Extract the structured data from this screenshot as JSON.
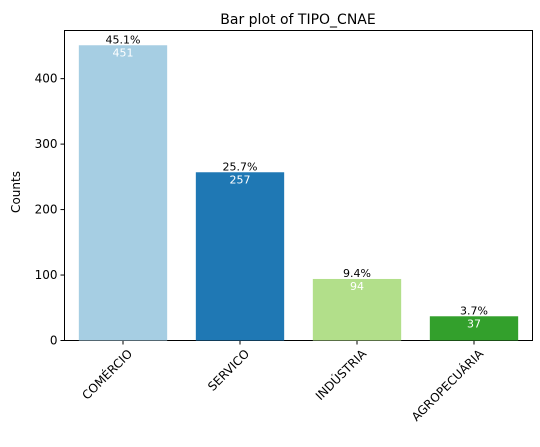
{
  "chart_data": {
    "type": "bar",
    "title": "Bar plot of TIPO_CNAE",
    "xlabel": "",
    "ylabel": "Counts",
    "categories": [
      "COMÉRCIO",
      "SERVICO",
      "INDÚSTRIA",
      "AGROPECUÁRIA"
    ],
    "values": [
      451,
      257,
      94,
      37
    ],
    "percent_labels": [
      "45.1%",
      "25.7%",
      "9.4%",
      "3.7%"
    ],
    "value_labels": [
      "451",
      "257",
      "94",
      "37"
    ],
    "colors": [
      "#a6cee3",
      "#1f78b4",
      "#b2df8a",
      "#33a02c"
    ],
    "ylim": [
      0,
      473.55
    ],
    "yticks": [
      0,
      100,
      200,
      300,
      400
    ],
    "grid": false,
    "legend": "none"
  }
}
